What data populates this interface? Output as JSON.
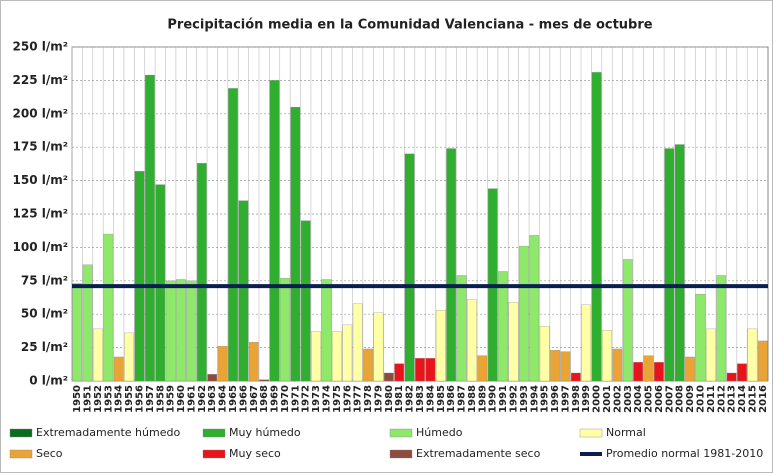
{
  "chart_data": {
    "type": "bar",
    "title": "Precipitación media en la Comunidad Valenciana - mes de octubre",
    "categories": [
      "1950",
      "1951",
      "1952",
      "1953",
      "1954",
      "1955",
      "1956",
      "1957",
      "1958",
      "1959",
      "1960",
      "1961",
      "1962",
      "1963",
      "1964",
      "1965",
      "1966",
      "1967",
      "1968",
      "1969",
      "1970",
      "1971",
      "1972",
      "1973",
      "1974",
      "1975",
      "1976",
      "1977",
      "1978",
      "1979",
      "1980",
      "1981",
      "1982",
      "1983",
      "1984",
      "1985",
      "1986",
      "1987",
      "1988",
      "1989",
      "1990",
      "1991",
      "1992",
      "1993",
      "1994",
      "1995",
      "1996",
      "1997",
      "1998",
      "1999",
      "2000",
      "2001",
      "2002",
      "2003",
      "2004",
      "2005",
      "2006",
      "2007",
      "2008",
      "2009",
      "2010",
      "2011",
      "2012",
      "2013",
      "2014",
      "2015",
      "2016"
    ],
    "values": [
      73,
      87,
      39,
      110,
      18,
      36,
      157,
      229,
      147,
      75,
      76,
      75,
      163,
      5,
      26,
      219,
      135,
      29,
      1,
      225,
      77,
      205,
      120,
      37,
      76,
      37,
      42,
      58,
      24,
      51,
      6,
      13,
      170,
      17,
      17,
      53,
      174,
      79,
      61,
      19,
      144,
      82,
      59,
      101,
      109,
      41,
      23,
      22,
      6,
      57,
      231,
      38,
      24,
      91,
      14,
      19,
      14,
      174,
      177,
      18,
      65,
      39,
      79,
      6,
      13,
      39,
      30
    ],
    "colors": [
      "#8ee86a",
      "#8ee86a",
      "#ffffa6",
      "#8ee86a",
      "#eaa436",
      "#ffffa6",
      "#2fae2f",
      "#2fae2f",
      "#2fae2f",
      "#8ee86a",
      "#8ee86a",
      "#8ee86a",
      "#2fae2f",
      "#8c4b3c",
      "#eaa436",
      "#2fae2f",
      "#2fae2f",
      "#eaa436",
      "#8c4b3c",
      "#2fae2f",
      "#8ee86a",
      "#2fae2f",
      "#2fae2f",
      "#ffffa6",
      "#8ee86a",
      "#ffffa6",
      "#ffffa6",
      "#ffffa6",
      "#eaa436",
      "#ffffa6",
      "#8c4b3c",
      "#e8141b",
      "#2fae2f",
      "#e8141b",
      "#e8141b",
      "#ffffa6",
      "#2fae2f",
      "#8ee86a",
      "#ffffa6",
      "#eaa436",
      "#2fae2f",
      "#8ee86a",
      "#ffffa6",
      "#8ee86a",
      "#8ee86a",
      "#ffffa6",
      "#eaa436",
      "#eaa436",
      "#e8141b",
      "#ffffa6",
      "#2fae2f",
      "#ffffa6",
      "#eaa436",
      "#8ee86a",
      "#e8141b",
      "#eaa436",
      "#e8141b",
      "#2fae2f",
      "#2fae2f",
      "#eaa436",
      "#8ee86a",
      "#ffffa6",
      "#8ee86a",
      "#e8141b",
      "#e8141b",
      "#ffffa6",
      "#eaa436"
    ],
    "legend": [
      {
        "name": "Extremadamente húmedo",
        "color": "#0b6b1e"
      },
      {
        "name": "Muy húmedo",
        "color": "#2fae2f"
      },
      {
        "name": "Húmedo",
        "color": "#8ee86a"
      },
      {
        "name": "Normal",
        "color": "#ffffa6"
      },
      {
        "name": "Seco",
        "color": "#eaa436"
      },
      {
        "name": "Muy seco",
        "color": "#e8141b"
      },
      {
        "name": "Extremadamente seco",
        "color": "#8c4b3c"
      },
      {
        "name": "Promedio normal 1981-2010",
        "color": "#0a1e50"
      }
    ],
    "reference_line": {
      "value": 71,
      "color": "#0a1e50"
    },
    "ylim": [
      0,
      250
    ],
    "yticks": [
      {
        "value": 0,
        "label": "0 l/m²"
      },
      {
        "value": 25,
        "label": "25 l/m²"
      },
      {
        "value": 50,
        "label": "50 l/m²"
      },
      {
        "value": 75,
        "label": "75 l/m²"
      },
      {
        "value": 100,
        "label": "100 l/m²"
      },
      {
        "value": 125,
        "label": "125 l/m²"
      },
      {
        "value": 150,
        "label": "150 l/m²"
      },
      {
        "value": 175,
        "label": "175 l/m²"
      },
      {
        "value": 200,
        "label": "200 l/m²"
      },
      {
        "value": 225,
        "label": "225 l/m²"
      },
      {
        "value": 250,
        "label": "250 l/m²"
      }
    ],
    "grid": true
  }
}
